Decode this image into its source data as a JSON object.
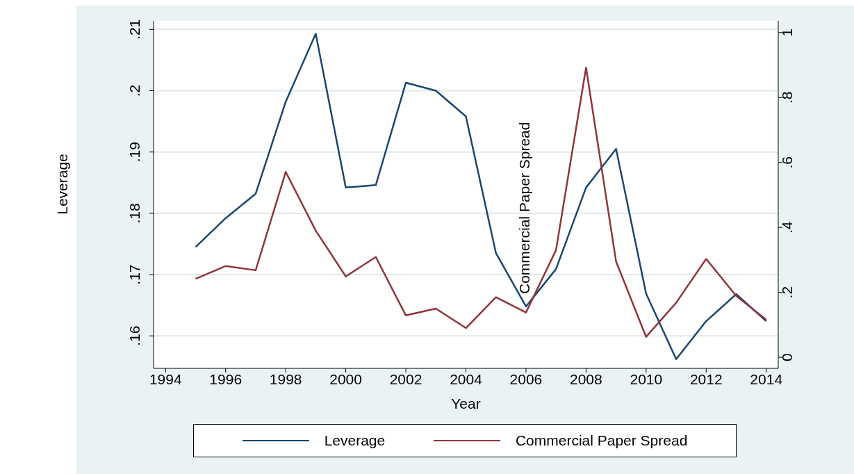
{
  "chart_data": {
    "type": "line",
    "ylabel": "Leverage",
    "xlabel": "Year",
    "annotations": [
      "Commercial Paper Spread"
    ],
    "x": [
      1995,
      1996,
      1997,
      1998,
      1999,
      2000,
      2001,
      2002,
      2003,
      2004,
      2005,
      2006,
      2007,
      2008,
      2009,
      2010,
      2011,
      2012,
      2013,
      2014
    ],
    "series": [
      {
        "name": "Leverage",
        "color": "#1a476f",
        "values": [
          0.1745,
          0.1792,
          0.1832,
          0.1982,
          0.2093,
          0.1842,
          0.1846,
          0.2013,
          0.2,
          0.1958,
          0.1735,
          0.1648,
          0.1709,
          0.1842,
          0.1905,
          0.1669,
          0.1562,
          0.1624,
          0.1668,
          0.1624
        ]
      },
      {
        "name": "Commercial Paper Spread",
        "color": "#90353b",
        "axis": "y2",
        "values": [
          0.242,
          0.281,
          0.268,
          0.571,
          0.39,
          0.249,
          0.309,
          0.129,
          0.15,
          0.09,
          0.185,
          0.138,
          0.33,
          0.892,
          0.295,
          0.063,
          0.168,
          0.303,
          0.189,
          0.116
        ]
      }
    ],
    "xlim": [
      1993.6,
      2014.4
    ],
    "xticks": [
      1994,
      1996,
      1998,
      2000,
      2002,
      2004,
      2006,
      2008,
      2010,
      2012,
      2014
    ],
    "ylim": [
      0.1547,
      0.2114
    ],
    "yticks": [
      {
        "value": 0.16,
        "label": ".16"
      },
      {
        "value": 0.17,
        "label": ".17"
      },
      {
        "value": 0.18,
        "label": ".18"
      },
      {
        "value": 0.19,
        "label": ".19"
      },
      {
        "value": 0.2,
        "label": ".2"
      },
      {
        "value": 0.21,
        "label": ".21"
      }
    ],
    "y2lim": [
      -0.034,
      1.036
    ],
    "y2ticks": [
      0,
      {
        "value": 0.2,
        "label": ".2"
      },
      {
        "value": 0.4,
        "label": ".4"
      },
      {
        "value": 0.6,
        "label": ".6"
      },
      {
        "value": 0.8,
        "label": ".8"
      },
      1
    ],
    "grid": "y",
    "legend": "bottom",
    "marker": "none",
    "line_style": "solid"
  }
}
